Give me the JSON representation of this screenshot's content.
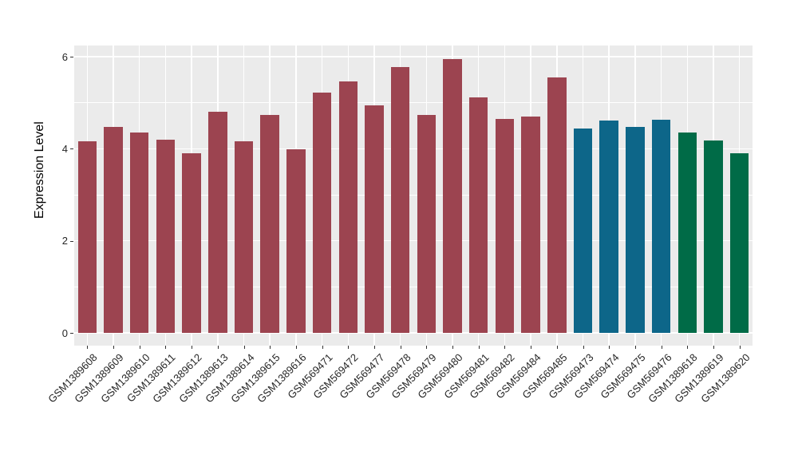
{
  "chart_data": {
    "type": "bar",
    "title": "",
    "ylabel": "Expression Level",
    "xlabel": "",
    "yticks": [
      0,
      2,
      4,
      6
    ],
    "minor_yticks": [
      1,
      3,
      5
    ],
    "ylim": [
      -0.28,
      6.24
    ],
    "grid": "on",
    "legend_position": "none",
    "panel_background": "#EBEBEB",
    "gridline_color": "#FFFFFF",
    "categories": [
      "GSM1389608",
      "GSM1389609",
      "GSM1389610",
      "GSM1389611",
      "GSM1389612",
      "GSM1389613",
      "GSM1389614",
      "GSM1389615",
      "GSM1389616",
      "GSM569471",
      "GSM569472",
      "GSM569477",
      "GSM569478",
      "GSM569479",
      "GSM569480",
      "GSM569481",
      "GSM569482",
      "GSM569484",
      "GSM569485",
      "GSM569473",
      "GSM569474",
      "GSM569475",
      "GSM569476",
      "GSM1389618",
      "GSM1389619",
      "GSM1389620"
    ],
    "values": [
      4.17,
      4.48,
      4.35,
      4.2,
      3.9,
      4.81,
      4.16,
      4.73,
      3.99,
      5.22,
      5.47,
      4.95,
      5.78,
      4.73,
      5.95,
      5.11,
      4.64,
      4.7,
      5.55,
      4.44,
      4.62,
      4.47,
      4.63,
      4.35,
      4.18,
      3.9
    ],
    "bar_groups": [
      0,
      0,
      0,
      0,
      0,
      0,
      0,
      0,
      0,
      0,
      0,
      0,
      0,
      0,
      0,
      0,
      0,
      0,
      0,
      1,
      1,
      1,
      1,
      2,
      2,
      2
    ],
    "group_colors": [
      "#9C4450",
      "#0D6689",
      "#006B47"
    ]
  }
}
